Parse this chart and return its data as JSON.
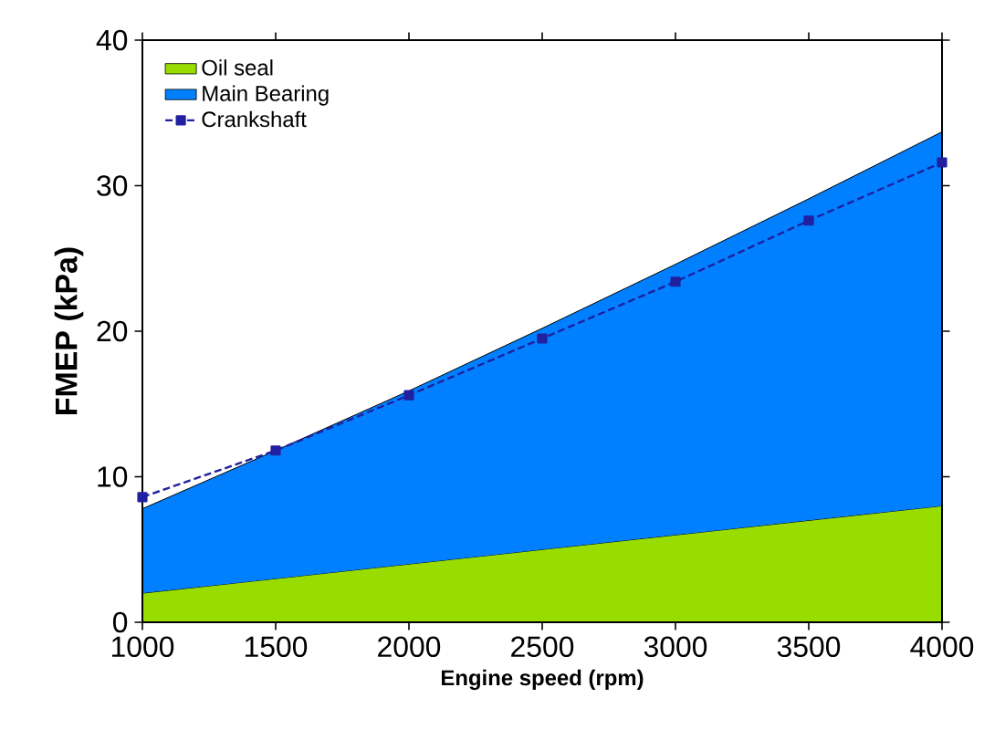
{
  "chart_data": {
    "type": "area",
    "xlabel": "Engine speed (rpm)",
    "ylabel": "FMEP (kPa)",
    "x": [
      1000,
      1500,
      2000,
      2500,
      3000,
      3500,
      4000
    ],
    "stacked": true,
    "series": [
      {
        "name": "Oil seal",
        "color": "#99dd00",
        "values": [
          2,
          3,
          4,
          5,
          6,
          7,
          8
        ]
      },
      {
        "name": "Main Bearing",
        "color": "#0080ff",
        "values": [
          5.8,
          8.8,
          11.9,
          15.2,
          18.6,
          22.1,
          25.7
        ]
      },
      {
        "name": "Crankshaft",
        "type": "line",
        "color": "#2020a0",
        "marker": "square",
        "line_style": "dashed",
        "values": [
          8.6,
          11.8,
          15.6,
          19.5,
          23.4,
          27.6,
          31.6
        ]
      }
    ],
    "xlim": [
      1000,
      4000
    ],
    "ylim": [
      0,
      40
    ],
    "xticks": [
      1000,
      1500,
      2000,
      2500,
      3000,
      3500,
      4000
    ],
    "yticks": [
      0,
      10,
      20,
      30,
      40
    ],
    "legend": "top left"
  }
}
